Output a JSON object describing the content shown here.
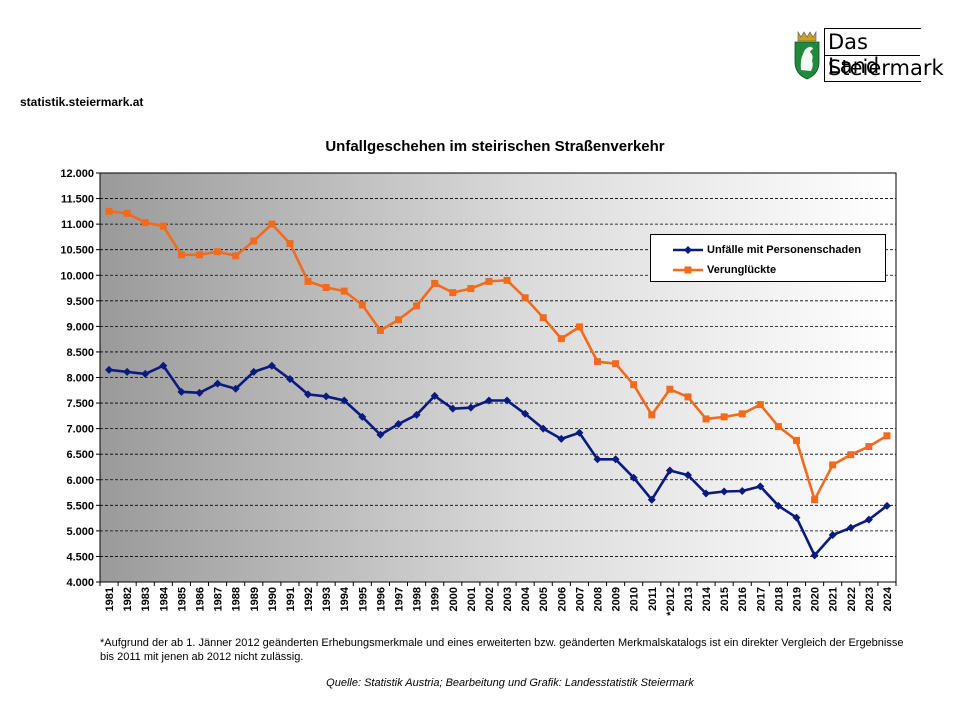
{
  "header": {
    "site_url": "statistik.steiermark.at",
    "logo": {
      "line1": "Das Land",
      "line2": "Steiermark"
    }
  },
  "chart_data": {
    "type": "line",
    "title": "Unfallgeschehen im steirischen Straßenverkehr",
    "xlabel": "",
    "ylabel": "",
    "x": [
      "1981",
      "1982",
      "1983",
      "1984",
      "1985",
      "1986",
      "1987",
      "1988",
      "1989",
      "1990",
      "1991",
      "1992",
      "1993",
      "1994",
      "1995",
      "1996",
      "1997",
      "1998",
      "1999",
      "2000",
      "2001",
      "2002",
      "2003",
      "2004",
      "2005",
      "2006",
      "2007",
      "2008",
      "2009",
      "2010",
      "2011",
      "*2012",
      "2013",
      "2014",
      "2015",
      "2016",
      "2017",
      "2018",
      "2019",
      "2020",
      "2021",
      "2022",
      "2023",
      "2024"
    ],
    "y_ticks": [
      "4.000",
      "4.500",
      "5.000",
      "5.500",
      "6.000",
      "6.500",
      "7.000",
      "7.500",
      "8.000",
      "8.500",
      "9.000",
      "9.500",
      "10.000",
      "10.500",
      "11.000",
      "11.500",
      "12.000"
    ],
    "ylim": [
      4000,
      12000
    ],
    "grid": true,
    "legend_position": "top-right",
    "series": [
      {
        "name": "Unfälle mit Personenschaden",
        "color": "#0b1a7d",
        "marker": "diamond",
        "values": [
          8150,
          8110,
          8070,
          8230,
          7720,
          7700,
          7880,
          7780,
          8110,
          8230,
          7970,
          7670,
          7630,
          7550,
          7230,
          6880,
          7090,
          7270,
          7640,
          7390,
          7410,
          7550,
          7550,
          7290,
          7000,
          6800,
          6920,
          6400,
          6400,
          6040,
          5610,
          6180,
          6090,
          5730,
          5770,
          5780,
          5870,
          5490,
          5260,
          4520,
          4920,
          5060,
          5220,
          5490
        ]
      },
      {
        "name": "Verunglückte",
        "color": "#f26b1d",
        "marker": "square",
        "values": [
          11250,
          11210,
          11030,
          10960,
          10400,
          10400,
          10460,
          10380,
          10670,
          11000,
          10620,
          9880,
          9760,
          9690,
          9420,
          8920,
          9130,
          9400,
          9840,
          9660,
          9740,
          9880,
          9900,
          9560,
          9170,
          8760,
          8990,
          8310,
          8270,
          7860,
          7270,
          7770,
          7620,
          7190,
          7230,
          7290,
          7470,
          7040,
          6770,
          5610,
          6290,
          6490,
          6650,
          6860
        ]
      }
    ],
    "footnote": "*Aufgrund der ab 1. Jänner 2012 geänderten Erhebungsmerkmale und eines erweiterten bzw. geänderten Merkmalskatalogs ist ein direkter Vergleich der Ergebnisse bis 2011 mit jenen ab 2012 nicht zulässig.",
    "source": "Quelle: Statistik Austria; Bearbeitung und Grafik: Landesstatistik Steiermark"
  }
}
